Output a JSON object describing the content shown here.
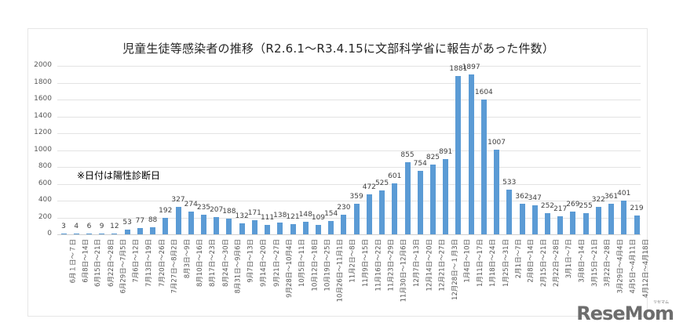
{
  "chart_data": {
    "type": "bar",
    "title": "児童生徒等感染者の推移（R2.6.1～R3.4.15に文部科学省に報告があった件数）",
    "xlabel": "",
    "ylabel": "",
    "ylim": [
      0,
      2000
    ],
    "yticks": [
      "0",
      "200",
      "400",
      "600",
      "800",
      "1000",
      "1200",
      "1400",
      "1600",
      "1800",
      "2000"
    ],
    "grid": true,
    "legend": "none",
    "bar_color": "#5b9bd5",
    "annotation": "※日付は陽性診断日",
    "categories": [
      "6月１日～７日",
      "6月8日～14日",
      "6月15日～21日",
      "6月22日～28日",
      "6月29日～7月5日",
      "7月6日～12日",
      "7月13日～19日",
      "7月20日～26日",
      "7月27日～8月2日",
      "8月3日～9日",
      "8月10日～16日",
      "8月17日～23日",
      "8月24日～30日",
      "8月31日～9月6日",
      "9月7日～13日",
      "9月14日～20日",
      "9月21日～27日",
      "9月28日～10月4日",
      "10月5日～11日",
      "10月12日～18日",
      "10月19日～25日",
      "10月26日～11月1日",
      "11月2日～8日",
      "11月9日～15日",
      "11月16日～22日",
      "11月23日～29日",
      "11月30日～12月6日",
      "12月7日～13日",
      "12月14日～20日",
      "12月21日～27日",
      "12月28日～１月3日",
      "1月4日～10日",
      "1月11日～17日",
      "1月18日～24日",
      "1月25日～31日",
      "2月1日～7日",
      "2月8日～14日",
      "2月15日～21日",
      "2月22日～28日",
      "3月1日～7日",
      "3月8日～14日",
      "3月15日～21日",
      "3月22日～28日",
      "3月29日～4月4日",
      "4月5日～4月11日",
      "4月12日～4月18日"
    ],
    "values": [
      3,
      4,
      6,
      9,
      12,
      53,
      77,
      88,
      192,
      327,
      274,
      235,
      207,
      188,
      132,
      171,
      111,
      138,
      121,
      148,
      109,
      154,
      230,
      359,
      472,
      525,
      601,
      855,
      754,
      825,
      891,
      1881,
      1897,
      1604,
      1007,
      533,
      362,
      347,
      252,
      217,
      269,
      255,
      322,
      361,
      401,
      219
    ],
    "value_labels": [
      "3",
      "4",
      "6",
      "9",
      "12",
      "53",
      "77",
      "88",
      "192",
      "327",
      "274",
      "235",
      "207",
      "188",
      "132",
      "171",
      "111",
      "138",
      "121",
      "148",
      "109",
      "154",
      "230",
      "359",
      "472",
      "525",
      "601",
      "855",
      "754",
      "825",
      "891",
      "1881",
      "1897",
      "1604",
      "1007",
      "533",
      "362",
      "347",
      "252",
      "217",
      "269",
      "255",
      "322",
      "361",
      "401",
      "219"
    ]
  },
  "watermark": {
    "text": "ReseMom",
    "small": "リセマム"
  }
}
